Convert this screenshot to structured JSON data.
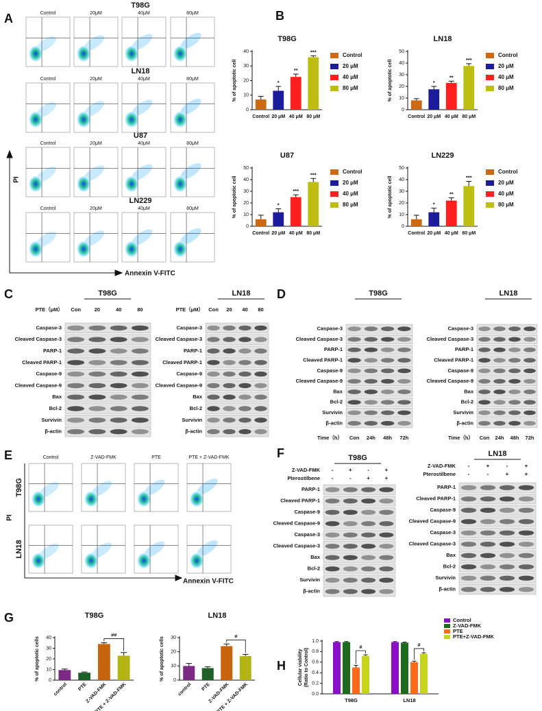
{
  "panel_labels": [
    "A",
    "B",
    "C",
    "D",
    "E",
    "F",
    "G",
    "H"
  ],
  "panel_a": {
    "cell_lines": [
      "T98G",
      "LN18",
      "U87",
      "LN229"
    ],
    "doses": [
      "Control",
      "20μM",
      "40μM",
      "80μM"
    ],
    "y_axis_label": "PI",
    "x_axis_label": "Annexin V-FITC"
  },
  "panel_c": {
    "blots": [
      {
        "title": "T98G",
        "dose_label": "PTE（μM）",
        "lanes": [
          "Con",
          "20",
          "40",
          "80"
        ],
        "proteins": [
          "Caspase-3",
          "Cleaved Caspase-3",
          "PARP-1",
          "Cleaved PARP-1",
          "Caspase-9",
          "Cleaved Caspase-9",
          "Bax",
          "Bcl-2",
          "Survivin",
          "β-actin"
        ]
      },
      {
        "title": "LN18",
        "dose_label": "PTE（μM）",
        "lanes": [
          "Con",
          "20",
          "40",
          "80"
        ],
        "proteins": [
          "Caspase-3",
          "Cleaved Caspase-3",
          "PARP-1",
          "Cleaved PARP-1",
          "Caspase-9",
          "Cleaved Caspase-9",
          "Bax",
          "Bcl-2",
          "Survivin",
          "β-actin"
        ]
      }
    ]
  },
  "panel_d": {
    "blots": [
      {
        "title": "T98G",
        "time_label": "Time（h）",
        "lanes": [
          "Con",
          "24h",
          "48h",
          "72h"
        ],
        "proteins": [
          "Caspase-3",
          "Cleaved Caspase-3",
          "PARP-1",
          "Cleaved PARP-1",
          "Caspase-9",
          "Cleaved Caspase-9",
          "Bax",
          "Bcl-2",
          "Survivin",
          "β-actin"
        ]
      },
      {
        "title": "LN18",
        "time_label": "Time（h）",
        "lanes": [
          "Con",
          "24h",
          "48h",
          "72h"
        ],
        "proteins": [
          "Caspase-3",
          "Cleaved Caspase-3",
          "PARP-1",
          "Cleaved PARP-1",
          "Caspase-9",
          "Cleaved Caspase-9",
          "Bax",
          "Bcl-2",
          "Survivin",
          "β-actin"
        ]
      }
    ]
  },
  "panel_e": {
    "conditions": [
      "Control",
      "Z-VAD-FMK",
      "PTE",
      "PTE + Z-VAD-FMK"
    ],
    "cell_lines": [
      "T98G",
      "LN18"
    ],
    "y_axis_label": "PI",
    "x_axis_label": "Annexin V-FITC"
  },
  "panel_f": {
    "blots": [
      {
        "title": "T98G",
        "treatments": [
          {
            "name": "Z-VAD-FMK",
            "signs": [
              "-",
              "+",
              "-",
              "+"
            ]
          },
          {
            "name": "Pterostilbene",
            "signs": [
              "-",
              "-",
              "+",
              "+"
            ]
          }
        ],
        "proteins": [
          "PARP-1",
          "Cleaved PARP-1",
          "Caspase-9",
          "Cleaved Caspase-9",
          "Caspase-3",
          "Cleaved Caspase-3",
          "Bax",
          "Bcl-2",
          "Survivin",
          "β-actin"
        ]
      },
      {
        "title": "LN18",
        "treatments": [
          {
            "name": "Z-VAD-FMK",
            "signs": [
              "-",
              "+",
              "-",
              "+"
            ]
          },
          {
            "name": "Pterostilbene",
            "signs": [
              "-",
              "-",
              "+",
              "+"
            ]
          }
        ],
        "proteins": [
          "PARP-1",
          "Cleaved PARP-1",
          "Caspase-9",
          "Cleaved Caspase-9",
          "Caspase-3",
          "Cleaved Caspase-3",
          "Bax",
          "Bcl-2",
          "Survivin",
          "β-actin"
        ]
      }
    ]
  },
  "chart_data": [
    {
      "type": "bar",
      "title": "T98G",
      "y_label": "% of apoptotic cell",
      "categories": [
        "Control",
        "20 μM",
        "40 μM",
        "80 μM"
      ],
      "values": [
        7,
        13,
        22.5,
        36
      ],
      "errors": [
        2.2,
        3,
        2,
        1
      ],
      "annotations": [
        null,
        "*",
        "**",
        "***"
      ],
      "colors": [
        "#cc6a14",
        "#1c1c9c",
        "#ff1f1f",
        "#bdbd12"
      ],
      "ylim": [
        0,
        40
      ],
      "yticks": [
        0,
        10,
        20,
        30,
        40
      ],
      "legend": "right"
    },
    {
      "type": "bar",
      "title": "LN18",
      "y_label": "% of apoptotic cell",
      "categories": [
        "Control",
        "20 μM",
        "40 μM",
        "80 μM"
      ],
      "values": [
        8,
        17.5,
        23,
        37.5
      ],
      "errors": [
        1.5,
        2.5,
        1.5,
        2
      ],
      "annotations": [
        null,
        "*",
        "**",
        "***"
      ],
      "colors": [
        "#cc6a14",
        "#1c1c9c",
        "#ff1f1f",
        "#bdbd12"
      ],
      "ylim": [
        0,
        50
      ],
      "yticks": [
        0,
        10,
        20,
        30,
        40,
        50
      ],
      "legend": "right"
    },
    {
      "type": "bar",
      "title": "U87",
      "y_label": "% of apoptotic cell",
      "categories": [
        "Control",
        "20 μM",
        "40 μM",
        "80 μM"
      ],
      "values": [
        6,
        12,
        25,
        38
      ],
      "errors": [
        3.5,
        3,
        2,
        3
      ],
      "annotations": [
        null,
        "*",
        "***",
        "***"
      ],
      "colors": [
        "#cc6a14",
        "#1c1c9c",
        "#ff1f1f",
        "#bdbd12"
      ],
      "ylim": [
        0,
        50
      ],
      "yticks": [
        0,
        10,
        20,
        30,
        40,
        50
      ],
      "legend": "right"
    },
    {
      "type": "bar",
      "title": "LN229",
      "y_label": "% of apoptotic cell",
      "categories": [
        "Control",
        "20 μM",
        "40 μM",
        "80 μM"
      ],
      "values": [
        6,
        12,
        22,
        34.5
      ],
      "errors": [
        3.5,
        3.5,
        2.5,
        4
      ],
      "annotations": [
        null,
        "*",
        "**",
        "***"
      ],
      "colors": [
        "#cc6a14",
        "#1c1c9c",
        "#ff1f1f",
        "#bdbd12"
      ],
      "ylim": [
        0,
        50
      ],
      "yticks": [
        0,
        10,
        20,
        30,
        40,
        50
      ],
      "legend": "right"
    },
    {
      "type": "bar",
      "title": "T98G",
      "y_label": "% of apoptotic cells",
      "categories": [
        "control",
        "PTE",
        "Z-VAD-FMK",
        "PTE + Z-VAD-FMK"
      ],
      "values": [
        9.5,
        7,
        34,
        23
      ],
      "errors": [
        1,
        0.7,
        1.2,
        3
      ],
      "colors": [
        "#7a2a84",
        "#1f5f28",
        "#c8640e",
        "#b4b414"
      ],
      "ylim": [
        0,
        40
      ],
      "yticks": [
        0,
        10,
        20,
        30,
        40
      ],
      "comparison_label": "##"
    },
    {
      "type": "bar",
      "title": "LN18",
      "y_label": "% of apoptotic cells",
      "categories": [
        "control",
        "PTE",
        "Z-VAD-FMK",
        "PTE + Z-VAD-FMK"
      ],
      "values": [
        10,
        8.5,
        24,
        17
      ],
      "errors": [
        1.8,
        1,
        1.5,
        1.2
      ],
      "colors": [
        "#7a2a84",
        "#1f5f28",
        "#c8640e",
        "#b4b414"
      ],
      "ylim": [
        0,
        30
      ],
      "yticks": [
        0,
        10,
        20,
        30
      ],
      "comparison_label": "#"
    },
    {
      "type": "grouped_bar",
      "y_label": [
        "Cellular viability",
        "(Ratio to Control)"
      ],
      "categories": [
        "T98G",
        "LN18"
      ],
      "series": [
        {
          "name": "Control",
          "color": "#8a10c8",
          "values": [
            0.98,
            0.98
          ],
          "errors": [
            0.01,
            0.01
          ]
        },
        {
          "name": "Z-VAD-FMK",
          "color": "#1e6a1e",
          "values": [
            0.98,
            0.97
          ],
          "errors": [
            0.01,
            0.01
          ]
        },
        {
          "name": "PTE",
          "color": "#ff6a1a",
          "values": [
            0.5,
            0.6
          ],
          "errors": [
            0.04,
            0.02
          ]
        },
        {
          "name": "PTE+Z-VAD-FMK",
          "color": "#c6d41c",
          "values": [
            0.72,
            0.76
          ],
          "errors": [
            0.02,
            0.02
          ]
        }
      ],
      "annotations": [
        "#",
        "#"
      ],
      "ylim": [
        0,
        1
      ],
      "yticks": [
        {
          "value": 0,
          "label": "0.0"
        },
        0.2,
        0.4,
        0.6,
        0.8,
        {
          "value": 1,
          "label": "1.0"
        }
      ],
      "legend": "top-right"
    }
  ]
}
